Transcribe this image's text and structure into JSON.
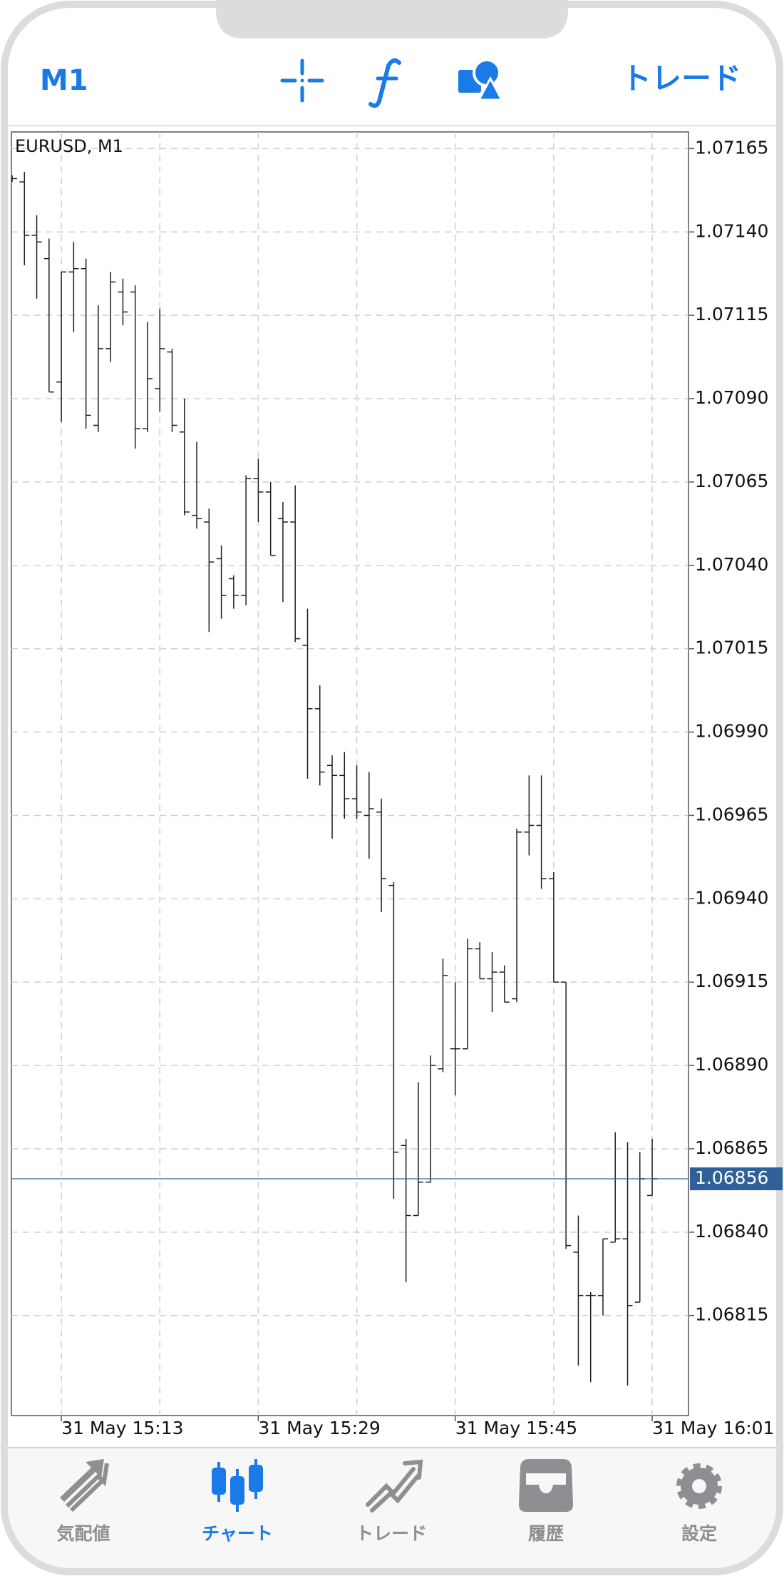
{
  "header": {
    "timeframe": "M1",
    "trade": "トレード"
  },
  "chart_data": {
    "type": "ohlc",
    "title": "EURUSD, M1",
    "color": "#1e1e1e",
    "categories": [
      null,
      null,
      null,
      null,
      "31 May 15:13",
      null,
      null,
      null,
      null,
      null,
      null,
      null,
      null,
      null,
      null,
      null,
      null,
      null,
      null,
      null,
      "31 May 15:29",
      null,
      null,
      null,
      null,
      null,
      null,
      null,
      null,
      null,
      null,
      null,
      null,
      null,
      null,
      null,
      "31 May 15:45",
      null,
      null,
      null,
      null,
      null,
      null,
      null,
      null,
      null,
      null,
      null,
      null,
      null,
      null,
      null,
      "31 May 16:01"
    ],
    "series": {
      "open": [
        1.07156,
        1.07155,
        1.07139,
        1.07132,
        1.07095,
        1.07128,
        1.07129,
        1.07082,
        1.07105,
        1.07122,
        1.07122,
        1.07081,
        1.07093,
        1.07104,
        1.0708,
        1.07055,
        1.07053,
        1.07042,
        1.07036,
        1.07031,
        1.07066,
        1.07062,
        1.07054,
        1.07053,
        1.07016,
        1.06997,
        1.0698,
        1.06977,
        1.0697,
        1.06965,
        1.06966,
        1.06944,
        1.06866,
        1.06845,
        1.06855,
        1.06889,
        1.06895,
        1.06895,
        1.06925,
        1.06916,
        1.06918,
        1.0691,
        1.0696,
        1.06962,
        1.06946,
        1.06915,
        1.06834,
        1.06821,
        1.06821,
        1.06837,
        1.06838,
        1.06819,
        1.06851
      ],
      "high": [
        1.07157,
        1.07158,
        1.07145,
        1.07138,
        1.07128,
        1.07137,
        1.07132,
        1.07118,
        1.07128,
        1.07126,
        1.07124,
        1.07113,
        1.07117,
        1.07105,
        1.0709,
        1.07077,
        1.07057,
        1.07046,
        1.07037,
        1.07067,
        1.07072,
        1.07065,
        1.07059,
        1.07064,
        1.07027,
        1.07004,
        1.06983,
        1.06984,
        1.0698,
        1.06978,
        1.0697,
        1.06945,
        1.06868,
        1.06885,
        1.06893,
        1.06922,
        1.06915,
        1.06928,
        1.06927,
        1.06924,
        1.0692,
        1.06961,
        1.06977,
        1.06977,
        1.06948,
        1.06915,
        1.06845,
        1.06822,
        1.06838,
        1.0687,
        1.06867,
        1.06864,
        1.06868
      ],
      "low": [
        1.07155,
        1.0713,
        1.0712,
        1.07092,
        1.07083,
        1.0711,
        1.07081,
        1.0708,
        1.07101,
        1.07112,
        1.07075,
        1.0708,
        1.07086,
        1.0708,
        1.07055,
        1.07051,
        1.0702,
        1.07024,
        1.07027,
        1.07028,
        1.07053,
        1.07043,
        1.07029,
        1.07017,
        1.06976,
        1.06974,
        1.06958,
        1.06964,
        1.06964,
        1.06952,
        1.06936,
        1.0685,
        1.06825,
        1.06845,
        1.06855,
        1.06888,
        1.06881,
        1.06895,
        1.06916,
        1.06906,
        1.06909,
        1.06909,
        1.06953,
        1.06943,
        1.06915,
        1.06835,
        1.068,
        1.06795,
        1.06815,
        1.06837,
        1.06794,
        1.06819,
        1.06851
      ],
      "close": [
        1.07156,
        1.07139,
        1.07137,
        1.07092,
        1.07128,
        1.07129,
        1.07085,
        1.07105,
        1.07125,
        1.07116,
        1.07081,
        1.07096,
        1.07105,
        1.07082,
        1.07056,
        1.07054,
        1.07041,
        1.07031,
        1.07031,
        1.07066,
        1.07062,
        1.07043,
        1.07053,
        1.07018,
        1.06997,
        1.06978,
        1.06977,
        1.0697,
        1.06966,
        1.06967,
        1.06946,
        1.06864,
        1.06845,
        1.06855,
        1.0689,
        1.06917,
        1.06895,
        1.06925,
        1.06916,
        1.06918,
        1.06909,
        1.0696,
        1.06962,
        1.06946,
        1.06915,
        1.06836,
        1.06821,
        1.06821,
        1.06838,
        1.06838,
        1.06818,
        1.06856,
        1.06856
      ]
    },
    "last_price": 1.06856,
    "last_price_color": "#2f6099",
    "ylim": [
      1.06785,
      1.0717
    ],
    "yticks": [
      1.07165,
      {
        "value": 1.0714,
        "label": "1.07140"
      },
      1.07115,
      {
        "value": 1.0709,
        "label": "1.07090"
      },
      1.07065,
      {
        "value": 1.0704,
        "label": "1.07040"
      },
      1.07015,
      {
        "value": 1.0699,
        "label": "1.06990"
      },
      1.06965,
      {
        "value": 1.0694,
        "label": "1.06940"
      },
      1.06915,
      {
        "value": 1.0689,
        "label": "1.06890"
      },
      1.06865,
      {
        "value": 1.0684,
        "label": "1.06840"
      },
      1.06815
    ],
    "grid": true
  },
  "tabs": [
    "気配値",
    "チャート",
    "トレード",
    "履歴",
    "設定"
  ]
}
